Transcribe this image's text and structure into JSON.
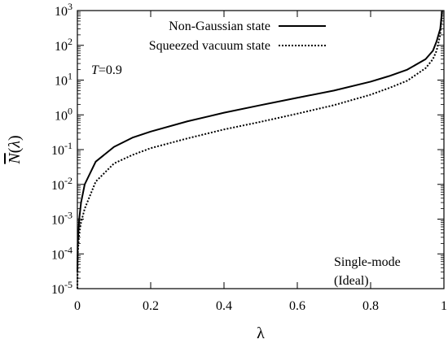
{
  "chart_data": {
    "type": "line",
    "xlabel": "λ",
    "ylabel": "N(λ)",
    "xlim": [
      0,
      1
    ],
    "ylim": [
      1e-05,
      1000
    ],
    "yscale": "log",
    "grid": false,
    "legend_position": "top-right",
    "x_ticks": [
      "0",
      "0.2",
      "0.4",
      "0.6",
      "0.8",
      "1"
    ],
    "y_ticks": [
      {
        "base": "10",
        "exp": "-5"
      },
      {
        "base": "10",
        "exp": "-4"
      },
      {
        "base": "10",
        "exp": "-3"
      },
      {
        "base": "10",
        "exp": "-2"
      },
      {
        "base": "10",
        "exp": "-1"
      },
      {
        "base": "10",
        "exp": "0"
      },
      {
        "base": "10",
        "exp": "1"
      },
      {
        "base": "10",
        "exp": "2"
      },
      {
        "base": "10",
        "exp": "3"
      }
    ],
    "annotations": {
      "parameter": "T=0.9",
      "param_symbol": "T",
      "param_rest": "=0.9",
      "mode_line1": "Single-mode",
      "mode_line2": "(Ideal)"
    },
    "series": [
      {
        "name": "Non-Gaussian state",
        "style": "solid",
        "color": "#000000",
        "x": [
          0.0001,
          0.001,
          0.005,
          0.01,
          0.02,
          0.05,
          0.1,
          0.15,
          0.2,
          0.3,
          0.4,
          0.5,
          0.6,
          0.7,
          0.8,
          0.85,
          0.9,
          0.95,
          0.97,
          0.98,
          0.99,
          0.995
        ],
        "y": [
          3e-05,
          0.0002,
          0.001,
          0.003,
          0.01,
          0.045,
          0.12,
          0.22,
          0.33,
          0.65,
          1.15,
          1.9,
          3.1,
          5.0,
          9.0,
          13.0,
          20.0,
          40.0,
          70.0,
          130.0,
          300.0,
          1000.0
        ]
      },
      {
        "name": "Squeezed vacuum state",
        "style": "dotted",
        "color": "#000000",
        "x": [
          0.0001,
          0.001,
          0.005,
          0.01,
          0.02,
          0.05,
          0.1,
          0.15,
          0.2,
          0.3,
          0.4,
          0.5,
          0.6,
          0.7,
          0.8,
          0.85,
          0.9,
          0.95,
          0.97,
          0.98,
          0.99,
          0.995
        ],
        "y": [
          1e-05,
          0.0001,
          0.0004,
          0.0008,
          0.002,
          0.012,
          0.04,
          0.07,
          0.11,
          0.21,
          0.38,
          0.63,
          1.08,
          1.9,
          3.8,
          5.9,
          9.6,
          22.0,
          40.0,
          70.0,
          200.0,
          1000.0
        ]
      }
    ]
  }
}
